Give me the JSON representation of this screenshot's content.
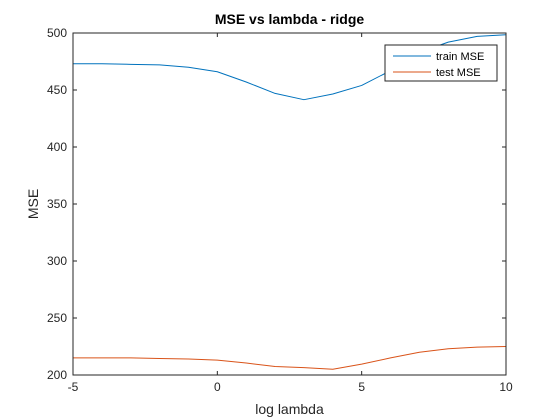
{
  "chart_data": {
    "type": "line",
    "title": "MSE vs lambda - ridge",
    "xlabel": "log lambda",
    "ylabel": "MSE",
    "xlim": [
      -5,
      10
    ],
    "ylim": [
      200,
      500
    ],
    "xticks": [
      -5,
      0,
      5,
      10
    ],
    "yticks": [
      200,
      250,
      300,
      350,
      400,
      450,
      500
    ],
    "grid": false,
    "legend_position": "top-right",
    "x": [
      -5,
      -4,
      -3,
      -2,
      -1,
      0,
      1,
      2,
      3,
      4,
      5,
      6,
      7,
      8,
      9,
      10
    ],
    "series": [
      {
        "name": "train MSE",
        "color": "#0072BD",
        "values": [
          473,
          473,
          472.5,
          472,
          470,
          466,
          457,
          447,
          441.5,
          446.5,
          454,
          467,
          483,
          492,
          497,
          498.5
        ]
      },
      {
        "name": "test MSE",
        "color": "#D95319",
        "values": [
          215,
          215,
          215,
          214.5,
          214,
          213,
          210.5,
          207.5,
          206.5,
          205,
          209.5,
          215,
          220,
          223,
          224.5,
          225
        ]
      }
    ]
  }
}
